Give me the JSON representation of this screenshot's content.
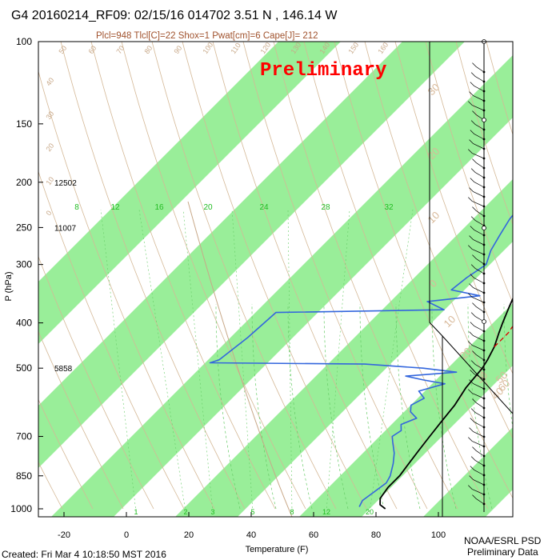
{
  "header": {
    "title": "G4 20160214_RF09: 02/15/16 014702   3.51 N , 146.14 W",
    "indices": "Plcl=948 Tlcl[C]=22 Shox=1 Pwat[cm]=6 Cape[J]= 212",
    "watermark": "Preliminary"
  },
  "footer": {
    "created": "Created: Fri Mar  4 10:18:50 MST 2016",
    "org_line1": "NOAA/ESRL PSD",
    "org_line2": "Preliminary Data"
  },
  "colors": {
    "isotherm_band": "#99ee99",
    "temperature": "#000000",
    "dewpoint": "#3366dd",
    "parcel": "#dd0000",
    "dry_adiabat": "#d4b896",
    "moist_adiabat": "#66cc66",
    "height_ref": "#c8a888"
  },
  "chart_data": {
    "type": "skew-t",
    "xlabel": "Temperature (F)",
    "ylabel": "P (hPa)",
    "x_ticks": [
      -20,
      0,
      20,
      40,
      60,
      80,
      100
    ],
    "p_ticks": [
      100,
      150,
      200,
      250,
      300,
      400,
      500,
      700,
      850,
      1000
    ],
    "p_range": [
      1000,
      100
    ],
    "height_labels": [
      {
        "p": 200,
        "text": "12502"
      },
      {
        "p": 250,
        "text": "11007"
      },
      {
        "p": 500,
        "text": "5858"
      }
    ],
    "mixing_ratio_labels_top": [
      "8",
      "12",
      "16",
      "20",
      "24",
      "28",
      "32"
    ],
    "mixing_ratio_labels_bottom": [
      "1",
      "2",
      "3",
      "5",
      "8",
      "12",
      "20"
    ],
    "dry_adiabat_labels": [
      "50",
      "60",
      "70",
      "80",
      "90",
      "100",
      "110",
      "120",
      "130",
      "140",
      "150",
      "160",
      "40",
      "30",
      "20",
      "10",
      "0"
    ],
    "moist_adiabat_labels": [
      "30",
      "20",
      "10",
      "0",
      "10",
      "20",
      "30",
      "40",
      "50",
      "60"
    ],
    "series": [
      {
        "name": "temperature",
        "points": [
          [
            1000,
            83
          ],
          [
            980,
            80
          ],
          [
            950,
            78
          ],
          [
            900,
            77
          ],
          [
            850,
            77
          ],
          [
            800,
            76
          ],
          [
            750,
            75
          ],
          [
            700,
            74
          ],
          [
            650,
            73
          ],
          [
            600,
            72
          ],
          [
            550,
            70
          ],
          [
            500,
            69
          ],
          [
            480,
            68
          ],
          [
            450,
            66
          ],
          [
            420,
            63
          ],
          [
            400,
            61
          ],
          [
            370,
            58
          ],
          [
            350,
            56
          ],
          [
            330,
            54
          ],
          [
            300,
            51
          ],
          [
            280,
            49
          ],
          [
            250,
            46
          ],
          [
            230,
            44
          ],
          [
            210,
            42
          ],
          [
            190,
            39
          ],
          [
            176,
            37
          ]
        ]
      },
      {
        "name": "dewpoint",
        "points": [
          [
            990,
            74
          ],
          [
            960,
            73
          ],
          [
            920,
            74
          ],
          [
            880,
            75
          ],
          [
            850,
            74
          ],
          [
            800,
            71
          ],
          [
            760,
            68
          ],
          [
            720,
            64
          ],
          [
            700,
            62
          ],
          [
            680,
            63
          ],
          [
            660,
            61
          ],
          [
            640,
            64
          ],
          [
            620,
            60
          ],
          [
            600,
            58
          ],
          [
            580,
            60
          ],
          [
            560,
            56
          ],
          [
            540,
            62
          ],
          [
            530,
            54
          ],
          [
            520,
            47
          ],
          [
            510,
            62
          ],
          [
            500,
            50
          ],
          [
            490,
            30
          ],
          [
            487,
            -20
          ],
          [
            480,
            -18
          ],
          [
            430,
            -16
          ],
          [
            380,
            -15
          ],
          [
            375,
            38
          ],
          [
            360,
            30
          ],
          [
            350,
            45
          ],
          [
            340,
            34
          ],
          [
            320,
            35
          ],
          [
            300,
            37
          ],
          [
            280,
            34
          ],
          [
            260,
            32
          ],
          [
            240,
            30
          ],
          [
            220,
            29
          ],
          [
            210,
            28
          ],
          [
            200,
            26
          ]
        ]
      },
      {
        "name": "parcel",
        "points": [
          [
            450,
            66
          ],
          [
            420,
            66
          ],
          [
            400,
            65
          ],
          [
            370,
            63
          ],
          [
            350,
            61
          ],
          [
            330,
            58
          ],
          [
            300,
            55
          ],
          [
            280,
            52
          ],
          [
            250,
            49
          ],
          [
            235,
            46
          ]
        ]
      }
    ],
    "wind_barbs": "right-column"
  }
}
